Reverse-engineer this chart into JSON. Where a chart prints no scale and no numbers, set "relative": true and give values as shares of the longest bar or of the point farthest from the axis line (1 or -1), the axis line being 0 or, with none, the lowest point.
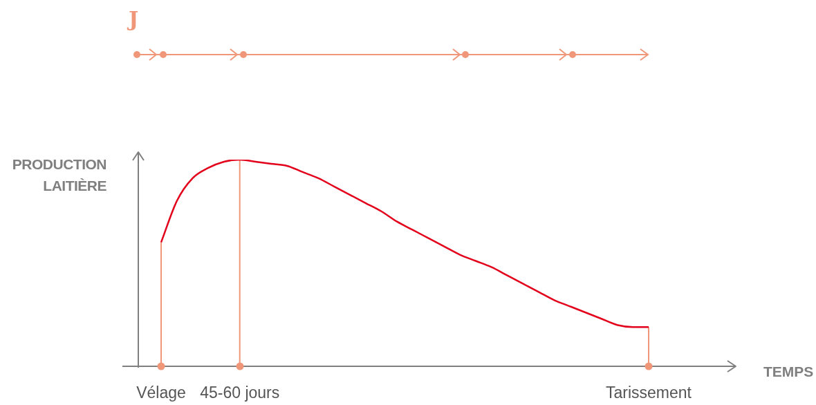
{
  "chart_data": {
    "type": "line",
    "relative": true,
    "ylabel": "PRODUCTION\nLAITIÈRE",
    "xlabel": "TEMPS",
    "annotations": [
      "J"
    ],
    "categories": [
      "Vélage",
      null,
      null,
      null,
      null,
      "45-60 jours",
      null,
      null,
      null,
      null,
      null,
      null,
      null,
      null,
      null,
      null,
      null,
      null,
      null,
      null,
      null,
      null,
      null,
      null,
      null,
      null,
      null,
      null,
      null,
      null,
      null,
      "Tarissement"
    ],
    "series": [
      {
        "color": "#e2001a",
        "values": [
          0.6,
          0.8,
          0.91,
          0.96,
          0.99,
          1.0,
          0.99,
          0.98,
          0.97,
          0.94,
          0.91,
          0.87,
          0.83,
          0.79,
          0.75,
          0.7,
          0.66,
          0.62,
          0.58,
          0.54,
          0.51,
          0.48,
          0.44,
          0.4,
          0.36,
          0.32,
          0.29,
          0.26,
          0.23,
          0.2,
          0.19,
          0.19
        ]
      }
    ],
    "ref_lines": [
      {
        "axis": "x",
        "value": "Vélage",
        "color": "#f0977a"
      },
      {
        "axis": "x",
        "value": "45-60 jours",
        "color": "#f0977a"
      },
      {
        "axis": "x",
        "value": "Tarissement",
        "color": "#f0977a"
      }
    ],
    "legend": false,
    "grid": false,
    "marker": "none",
    "line_style": "solid"
  }
}
